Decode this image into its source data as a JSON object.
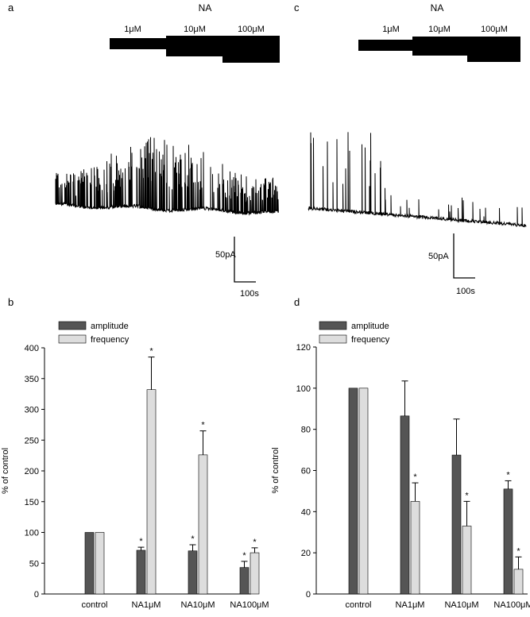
{
  "panels": {
    "a": "a",
    "b": "b",
    "c": "c",
    "d": "d"
  },
  "traces": [
    {
      "panel": "a",
      "drug": "NA",
      "concentrations": [
        "1μM",
        "10μM",
        "100μM"
      ],
      "scalebar": {
        "current": "50pA",
        "time": "100s"
      }
    },
    {
      "panel": "c",
      "drug": "NA",
      "concentrations": [
        "1μM",
        "10μM",
        "100μM"
      ],
      "scalebar": {
        "current": "50pA",
        "time": "100s"
      }
    }
  ],
  "chart_data": [
    {
      "panel": "b",
      "type": "bar",
      "ylabel": "% of control",
      "ylim": [
        0,
        400
      ],
      "yticks": [
        0,
        50,
        100,
        150,
        200,
        250,
        300,
        350,
        400
      ],
      "categories": [
        "control",
        "NA1μM",
        "NA10μM",
        "NA100μM"
      ],
      "legend_position": "top-left",
      "series": [
        {
          "name": "amplitude",
          "color": "#555555",
          "values": [
            100,
            71,
            70,
            43
          ],
          "errors": [
            0,
            5,
            10,
            10
          ],
          "significant": [
            false,
            true,
            true,
            true
          ]
        },
        {
          "name": "frequency",
          "color": "#dddddd",
          "values": [
            100,
            332,
            226,
            67
          ],
          "errors": [
            0,
            53,
            39,
            8
          ],
          "significant": [
            false,
            true,
            true,
            true
          ]
        }
      ],
      "significance_marker": "*"
    },
    {
      "panel": "d",
      "type": "bar",
      "ylabel": "% of control",
      "ylim": [
        0,
        120
      ],
      "yticks": [
        0,
        20,
        40,
        60,
        80,
        100,
        120
      ],
      "categories": [
        "control",
        "NA1μM",
        "NA10μM",
        "NA100μM"
      ],
      "legend_position": "top-left",
      "series": [
        {
          "name": "amplitude",
          "color": "#555555",
          "values": [
            100,
            86.5,
            67.5,
            51
          ],
          "errors": [
            0,
            17,
            17.5,
            4
          ],
          "significant": [
            false,
            false,
            false,
            true
          ]
        },
        {
          "name": "frequency",
          "color": "#dddddd",
          "values": [
            100,
            45,
            33,
            12
          ],
          "errors": [
            0,
            9,
            12,
            6
          ],
          "significant": [
            false,
            true,
            true,
            true
          ]
        }
      ],
      "significance_marker": "*"
    }
  ]
}
